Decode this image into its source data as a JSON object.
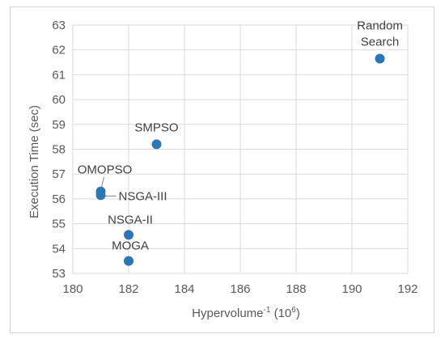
{
  "chart_data": {
    "type": "scatter",
    "xlabel": "Hypervolume",
    "xlabel_sup": "-1",
    "xlabel_unit_prefix": " (10",
    "xlabel_unit_sup": "6",
    "xlabel_unit_suffix": ")",
    "ylabel": "Execution Time (sec)",
    "xlim": [
      180,
      192
    ],
    "ylim": [
      53,
      63
    ],
    "x_ticks": [
      "180",
      "182",
      "184",
      "186",
      "188",
      "190",
      "192"
    ],
    "y_ticks": [
      "53",
      "54",
      "55",
      "56",
      "57",
      "58",
      "59",
      "60",
      "61",
      "62",
      "63"
    ],
    "grid": "horizontal and vertical",
    "marker_color": "#2e75b6",
    "grid_color": "#d9d9d9",
    "points": [
      {
        "label": "OMOPSO",
        "x": 181,
        "y": 56.3
      },
      {
        "label": "NSGA-III",
        "x": 181,
        "y": 56.15
      },
      {
        "label": "NSGA-II",
        "x": 182,
        "y": 54.55
      },
      {
        "label": "MOGA",
        "x": 182,
        "y": 53.5
      },
      {
        "label": "SMPSO",
        "x": 183,
        "y": 58.2
      },
      {
        "label": "Random",
        "label2": "Search",
        "x": 191,
        "y": 61.65
      }
    ]
  }
}
